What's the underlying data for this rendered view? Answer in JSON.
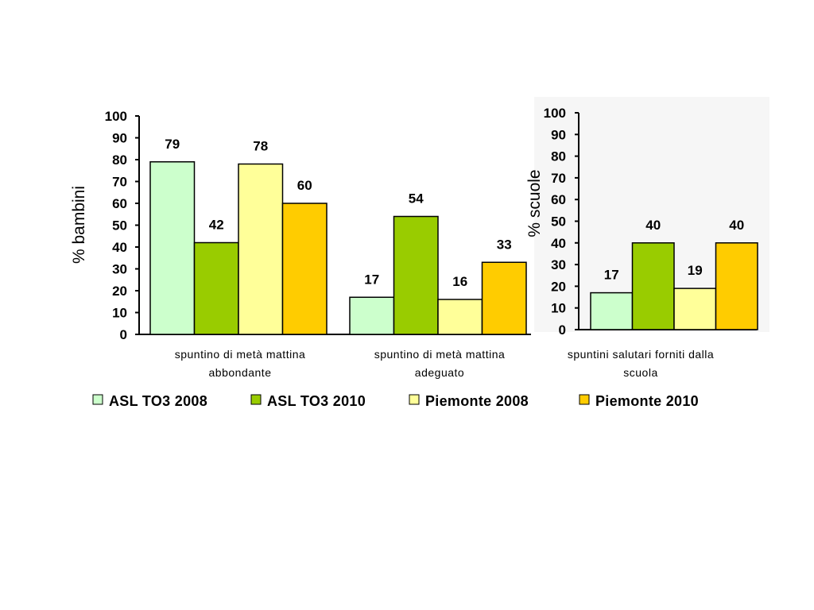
{
  "chart_data": [
    {
      "type": "bar",
      "ylabel": "% bambini",
      "ylim": [
        0,
        100
      ],
      "yticks": [
        0,
        10,
        20,
        30,
        40,
        50,
        60,
        70,
        80,
        90,
        100
      ],
      "categories": [
        [
          "spuntino di metà mattina",
          "abbondante"
        ],
        [
          "spuntino di metà mattina",
          "adeguato"
        ]
      ],
      "series": [
        {
          "name": "ASL TO3 2008",
          "values": [
            79,
            17
          ]
        },
        {
          "name": "ASL TO3 2010",
          "values": [
            42,
            54
          ]
        },
        {
          "name": "Piemonte 2008",
          "values": [
            78,
            16
          ]
        },
        {
          "name": "Piemonte 2010",
          "values": [
            60,
            33
          ]
        }
      ]
    },
    {
      "type": "bar",
      "ylabel": "% scuole",
      "ylim": [
        0,
        100
      ],
      "yticks": [
        0,
        10,
        20,
        30,
        40,
        50,
        60,
        70,
        80,
        90,
        100
      ],
      "categories": [
        [
          "spuntini salutari forniti dalla",
          "scuola"
        ]
      ],
      "series": [
        {
          "name": "ASL TO3 2008",
          "values": [
            17
          ]
        },
        {
          "name": "ASL TO3 2010",
          "values": [
            40
          ]
        },
        {
          "name": "Piemonte 2008",
          "values": [
            19
          ]
        },
        {
          "name": "Piemonte 2010",
          "values": [
            40
          ]
        }
      ]
    }
  ],
  "legend": {
    "position": "bottom",
    "items": [
      "ASL TO3 2008",
      "ASL TO3 2010",
      "Piemonte 2008",
      "Piemonte 2010"
    ]
  },
  "colors": {
    "ASL TO3 2008": "#ccffcc",
    "ASL TO3 2010": "#99cc00",
    "Piemonte 2008": "#ffff99",
    "Piemonte 2010": "#ffcc00"
  }
}
